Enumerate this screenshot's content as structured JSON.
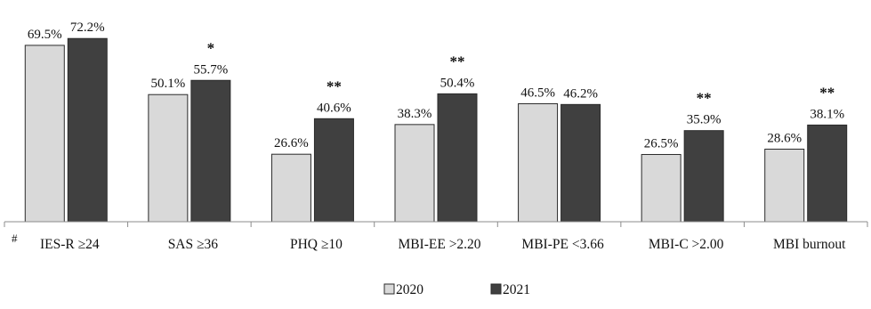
{
  "chart_data": {
    "type": "bar",
    "title": "",
    "xlabel": "",
    "ylabel": "",
    "ylim": [
      0,
      80
    ],
    "grid": false,
    "legend_position": "bottom",
    "categories": [
      "IES-R ≥24",
      "SAS ≥36",
      "PHQ ≥10",
      "MBI-EE >2.20",
      "MBI-PE <3.66",
      "MBI-C >2.00",
      "MBI burnout"
    ],
    "series": [
      {
        "name": "2020",
        "color": "#d9d9d9",
        "values": [
          69.5,
          50.1,
          26.6,
          38.3,
          46.5,
          26.5,
          28.6
        ],
        "labels": [
          "69.5%",
          "50.1%",
          "26.6%",
          "38.3%",
          "46.5%",
          "26.5%",
          "28.6%"
        ]
      },
      {
        "name": "2021",
        "color": "#404040",
        "values": [
          72.2,
          55.7,
          40.6,
          50.4,
          46.2,
          35.9,
          38.1
        ],
        "labels": [
          "72.2%",
          "55.7%",
          "40.6%",
          "50.4%",
          "46.2%",
          "35.9%",
          "38.1%"
        ]
      }
    ],
    "significance": [
      "",
      "*",
      "**",
      "**",
      "",
      "**",
      "**"
    ],
    "footnote_marker": "#"
  }
}
